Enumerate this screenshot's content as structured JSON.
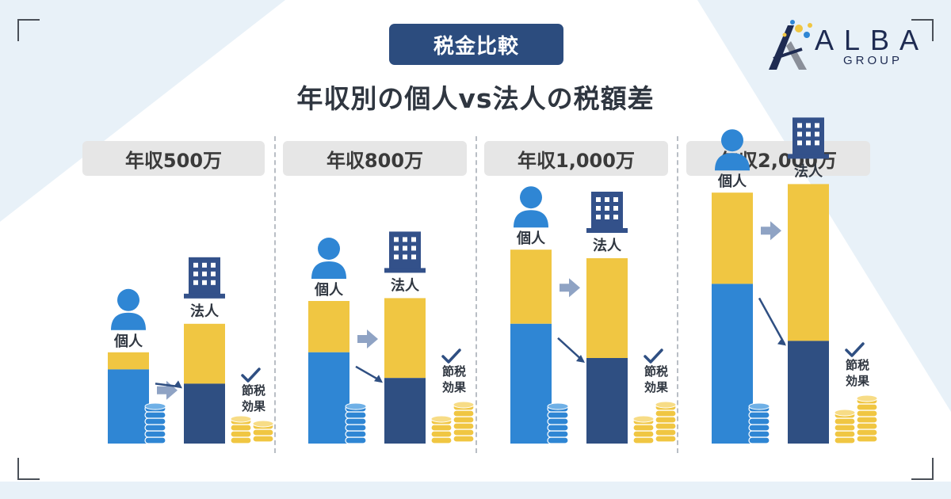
{
  "header": {
    "badge": "税金比較",
    "title": "年収別の個人vs法人の税額差"
  },
  "logo": {
    "name": "ALBA",
    "sub": "GROUP"
  },
  "colors": {
    "tax_blue": "#2f86d4",
    "tax_yellow": "#f0c642",
    "corp_navy": "#2f4f82",
    "icon_navy": "#33518a",
    "arrow_gray": "#8fa3c4"
  },
  "icons": [
    "person-icon",
    "building-icon",
    "checkmark-icon",
    "coin-stack-icon",
    "arrow-right-icon",
    "arrow-diagonal-icon"
  ],
  "chart_data": {
    "type": "bar",
    "title": "年収別の個人vs法人の税額差",
    "scale": "relative (no numeric axis shown)",
    "categories": [
      "年収500万",
      "年収800万",
      "年収1,000万",
      "年収2,000万"
    ],
    "labels": {
      "individual": "個人",
      "corporate": "法人",
      "saving": "節税効果"
    },
    "series": [
      {
        "name": "個人",
        "total": [
          3.2,
          5.0,
          6.8,
          8.8
        ],
        "bottom_share": [
          2.6,
          3.2,
          4.2,
          5.6
        ]
      },
      {
        "name": "法人",
        "total": [
          4.2,
          5.1,
          6.5,
          9.1
        ],
        "bottom_share": [
          2.1,
          2.3,
          3.0,
          3.6
        ]
      }
    ],
    "coins_individual": [
      6,
      6,
      6,
      6
    ],
    "coins_saving": [
      [
        4,
        3
      ],
      [
        4,
        6
      ],
      [
        4,
        6
      ],
      [
        5,
        7
      ]
    ]
  }
}
